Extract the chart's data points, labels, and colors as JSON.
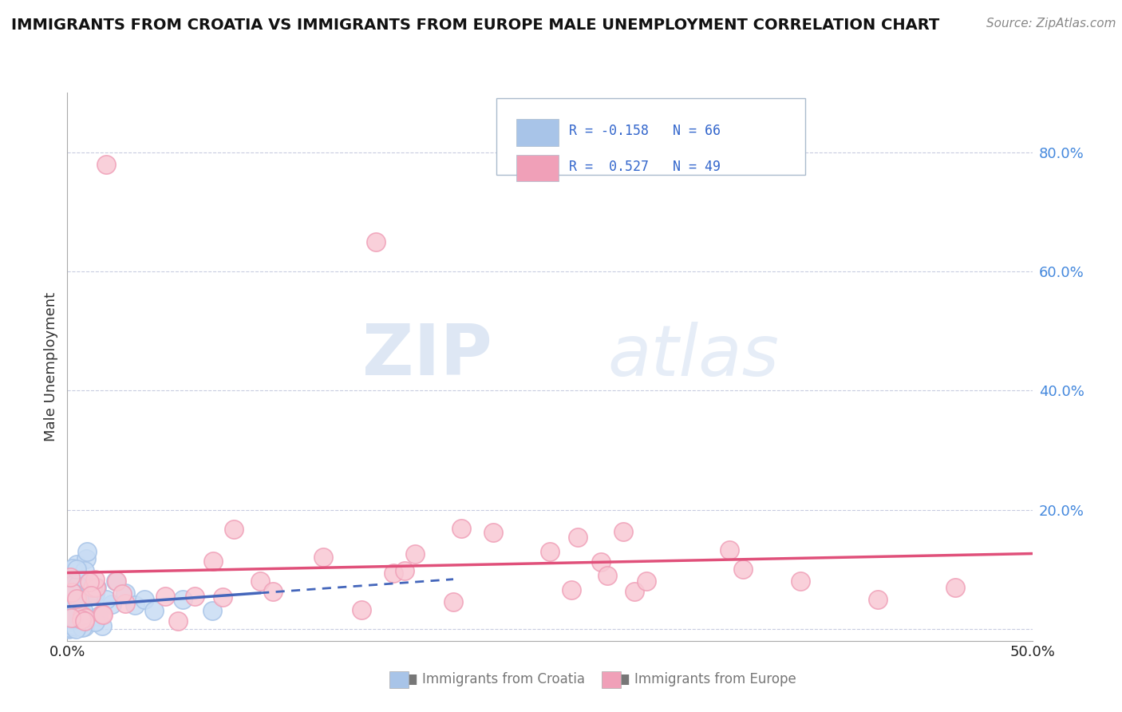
{
  "title": "IMMIGRANTS FROM CROATIA VS IMMIGRANTS FROM EUROPE MALE UNEMPLOYMENT CORRELATION CHART",
  "source": "Source: ZipAtlas.com",
  "ylabel": "Male Unemployment",
  "croatia_color": "#a8c4e8",
  "croatia_fill_color": "#c8dcf4",
  "croatia_line_color": "#4466bb",
  "europe_color": "#f0a0b8",
  "europe_fill_color": "#f8c8d4",
  "europe_line_color": "#e0507a",
  "background_color": "#ffffff",
  "grid_color": "#c8cce0",
  "xlim": [
    0.0,
    0.5
  ],
  "ylim": [
    -0.02,
    0.9
  ],
  "yticks": [
    0.0,
    0.2,
    0.4,
    0.6,
    0.8
  ],
  "watermark_zip": "ZIP",
  "watermark_atlas": "atlas",
  "legend_croatia_color": "#a8c4e8",
  "legend_europe_color": "#f0a0b8",
  "R_croatia": -0.158,
  "N_croatia": 66,
  "R_europe": 0.527,
  "N_europe": 49
}
